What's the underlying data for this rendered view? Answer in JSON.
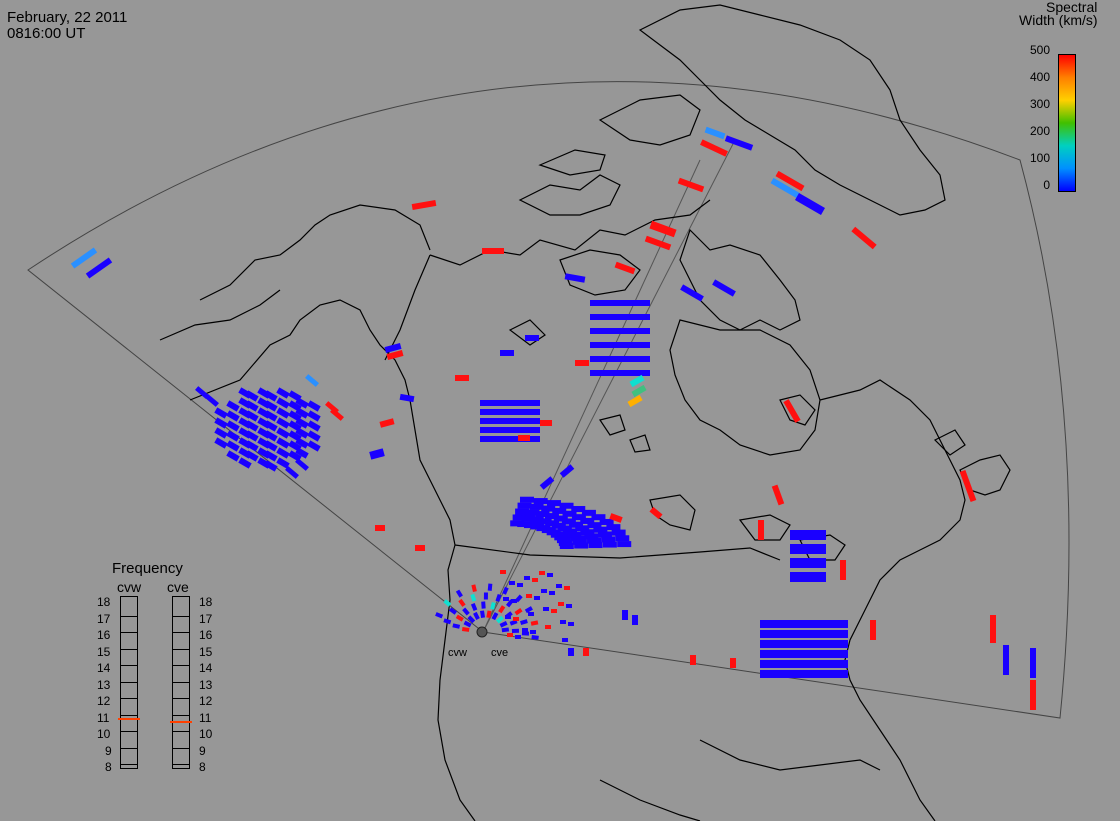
{
  "header": {
    "date": "February, 22 2011",
    "time": "0816:00 UT"
  },
  "colorbar": {
    "title_line1": "Spectral",
    "title_line2": "Width (km/s)",
    "ticks": [
      "500",
      "400",
      "300",
      "200",
      "100",
      "0"
    ],
    "colors": [
      "#ff0000",
      "#ff8000",
      "#ffd000",
      "#40c000",
      "#00d0c0",
      "#0090ff",
      "#0000ff"
    ]
  },
  "frequency": {
    "title": "Frequency",
    "radars": [
      "cvw",
      "cve"
    ],
    "ticks": [
      "18",
      "17",
      "16",
      "15",
      "14",
      "13",
      "12",
      "11",
      "10",
      "9",
      "8"
    ],
    "cvw_mhz": 10.8,
    "cve_mhz": 10.6
  },
  "radar_sites": {
    "west_label": "cvw",
    "east_label": "cve"
  }
}
